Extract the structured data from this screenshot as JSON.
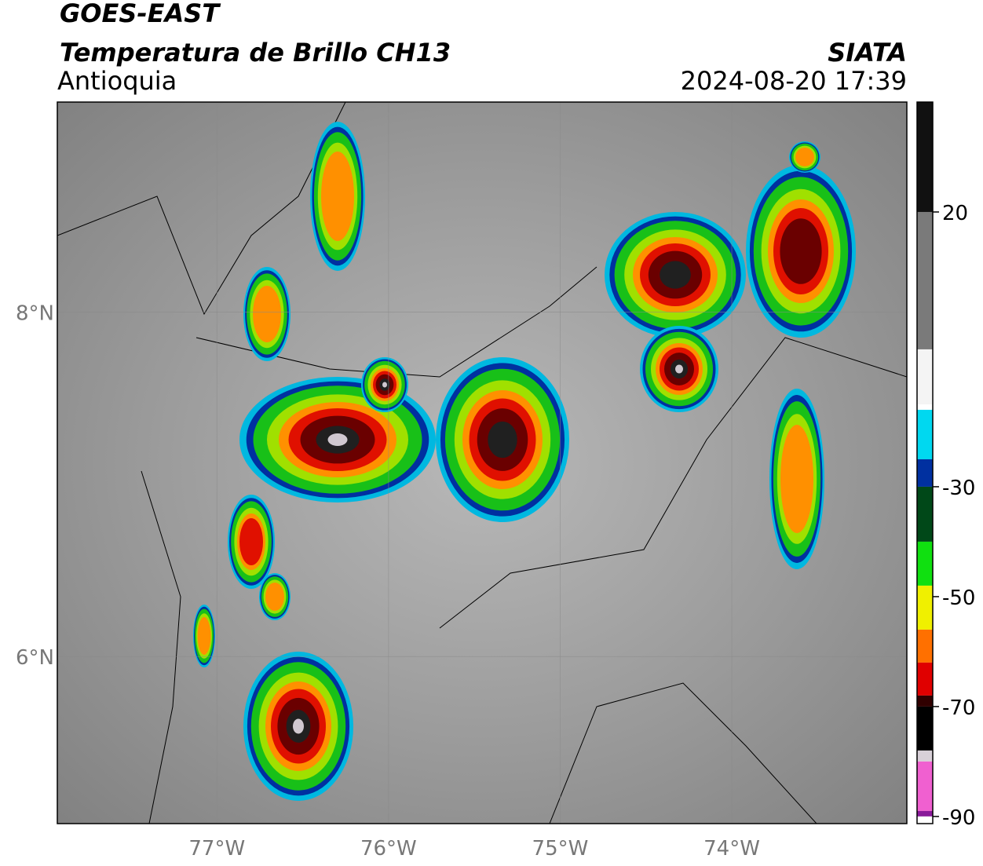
{
  "header": {
    "title": "GOES-EAST",
    "subtitle": "Temperatura de Brillo CH13",
    "region": "Antioquia",
    "source": "SIATA",
    "datetime": "2024-08-20 17:39"
  },
  "map": {
    "xlim": [
      -77.93,
      -72.98
    ],
    "ylim": [
      5.03,
      9.22
    ],
    "xticks": [
      {
        "value": -77,
        "label": "77°W"
      },
      {
        "value": -76,
        "label": "76°W"
      },
      {
        "value": -75,
        "label": "75°W"
      },
      {
        "value": -74,
        "label": "74°W"
      }
    ],
    "yticks": [
      {
        "value": 8,
        "label": "8°N"
      },
      {
        "value": 6,
        "label": "6°N"
      }
    ]
  },
  "colorbar": {
    "lim": [
      -91.3,
      40
    ],
    "ticks": [
      20,
      -30,
      -50,
      -70,
      -90
    ],
    "stops": [
      {
        "value": 40,
        "color": "#111111"
      },
      {
        "value": 20,
        "color": "#7a7a7a"
      },
      {
        "value": -5,
        "color": "#f4f4f4"
      },
      {
        "value": -15,
        "color": "#ffffff"
      },
      {
        "value": -16,
        "color": "#00d8f0"
      },
      {
        "value": -25,
        "color": "#0030a0"
      },
      {
        "value": -30,
        "color": "#004818"
      },
      {
        "value": -40,
        "color": "#10e010"
      },
      {
        "value": -48,
        "color": "#f0f000"
      },
      {
        "value": -56,
        "color": "#ff7000"
      },
      {
        "value": -62,
        "color": "#e00000"
      },
      {
        "value": -68,
        "color": "#300000"
      },
      {
        "value": -70,
        "color": "#000000"
      },
      {
        "value": -78,
        "color": "#d8d0d8"
      },
      {
        "value": -80,
        "color": "#f060d0"
      },
      {
        "value": -89,
        "color": "#8a1a9a"
      },
      {
        "value": -90,
        "color": "#ffffff"
      }
    ]
  }
}
